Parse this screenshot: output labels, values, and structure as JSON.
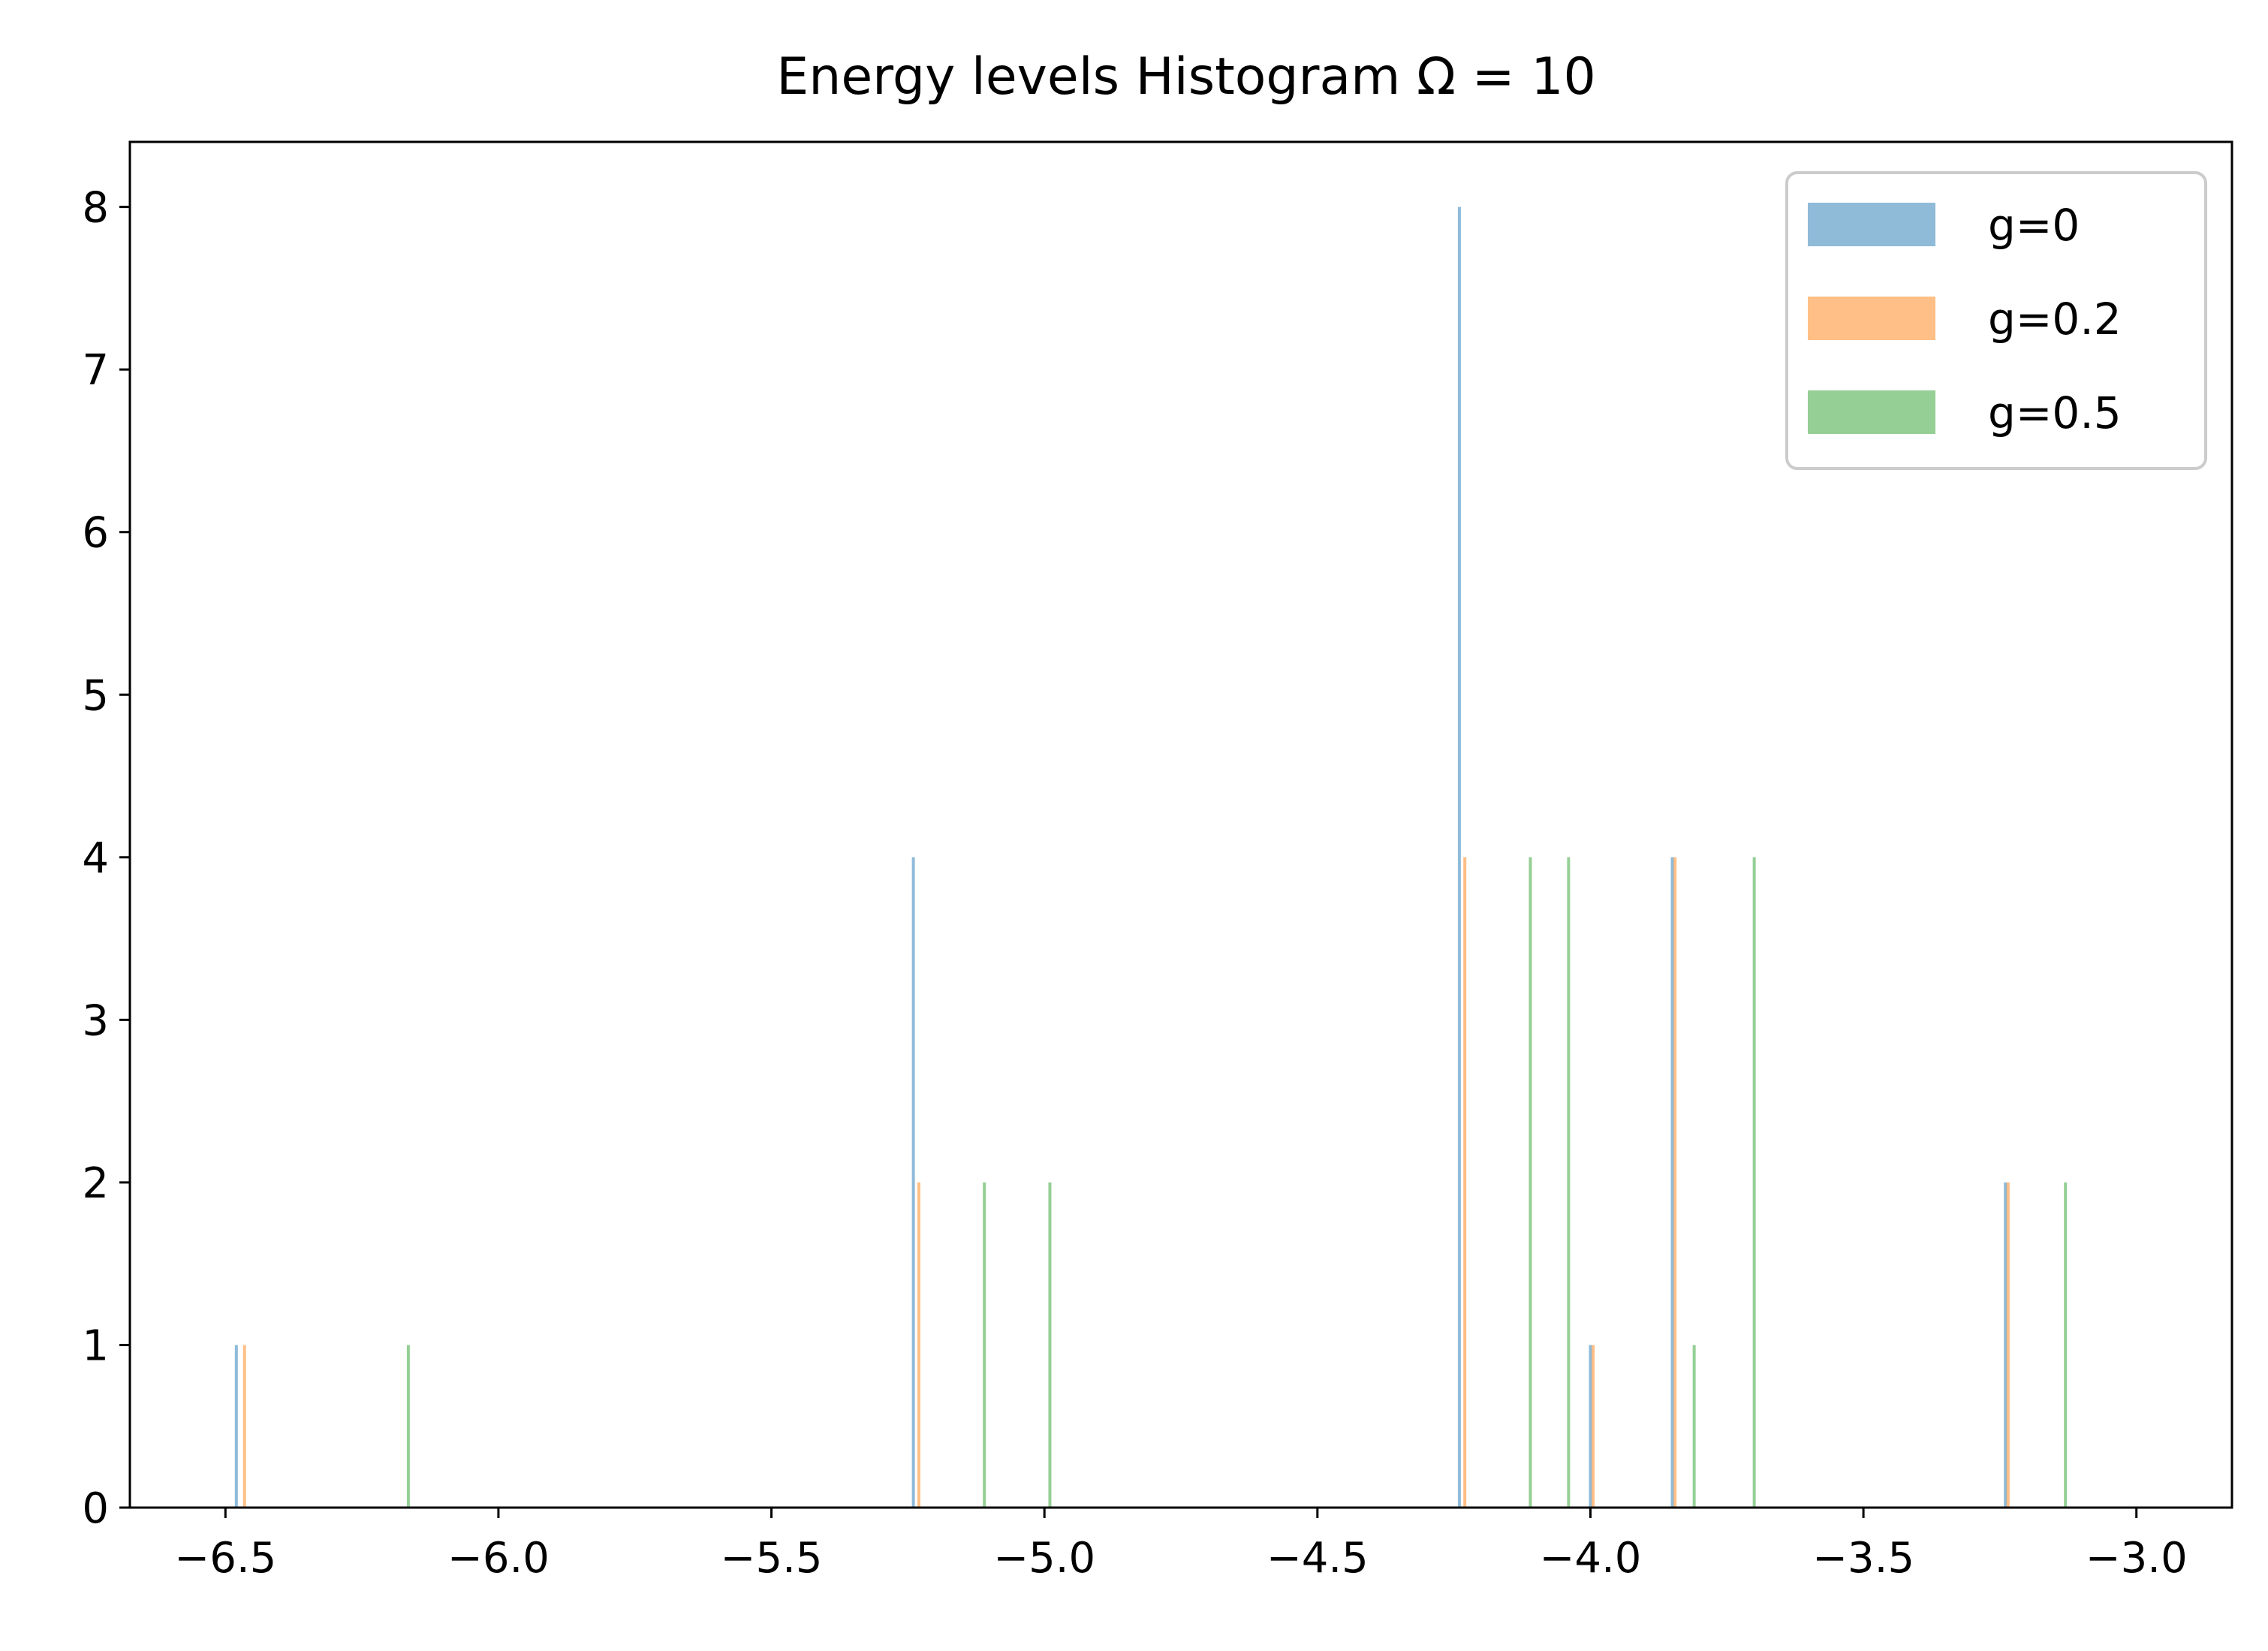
{
  "chart_data": {
    "type": "bar",
    "title": "Energy levels Histogram  Ω = 10",
    "xlabel": "",
    "ylabel": "",
    "xlim": [
      -6.675,
      -2.825
    ],
    "ylim": [
      0,
      8.4
    ],
    "xticks": [
      -6.5,
      -6.0,
      -5.5,
      -5.0,
      -4.5,
      -4.0,
      -3.5,
      -3.0
    ],
    "xtick_labels": [
      "−6.5",
      "−6.0",
      "−5.5",
      "−5.0",
      "−4.5",
      "−4.0",
      "−3.5",
      "−3.0"
    ],
    "yticks": [
      0,
      1,
      2,
      3,
      4,
      5,
      6,
      7,
      8
    ],
    "ytick_labels": [
      "0",
      "1",
      "2",
      "3",
      "4",
      "5",
      "6",
      "7",
      "8"
    ],
    "grid": false,
    "legend_position": "top-right",
    "series": [
      {
        "name": "g=0",
        "color": "#1f77b4",
        "opacity": 0.5,
        "x": [
          -6.48,
          -5.24,
          -4.24,
          -4.0,
          -3.85,
          -3.24
        ],
        "values": [
          1,
          4,
          8,
          1,
          4,
          2
        ]
      },
      {
        "name": "g=0.2",
        "color": "#ff7f0e",
        "opacity": 0.5,
        "x": [
          -6.465,
          -5.23,
          -4.23,
          -3.995,
          -3.845,
          -3.235
        ],
        "values": [
          1,
          2,
          4,
          1,
          4,
          2
        ]
      },
      {
        "name": "g=0.5",
        "color": "#2ca02c",
        "opacity": 0.5,
        "x": [
          -6.165,
          -5.11,
          -4.99,
          -4.11,
          -4.04,
          -3.81,
          -3.7,
          -3.13
        ],
        "values": [
          1,
          2,
          2,
          4,
          4,
          1,
          4,
          2
        ]
      }
    ]
  }
}
